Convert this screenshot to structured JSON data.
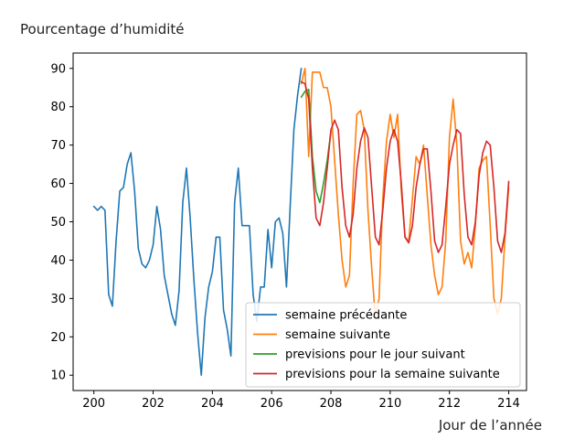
{
  "chart_data": {
    "type": "line",
    "title": "",
    "ylabel": "Pourcentage d’humidité",
    "xlabel": "Jour de l’année",
    "xlim": [
      199.3,
      214.6
    ],
    "ylim": [
      6,
      94
    ],
    "xticks": [
      200,
      202,
      204,
      206,
      208,
      210,
      212,
      214
    ],
    "yticks": [
      10,
      20,
      30,
      40,
      50,
      60,
      70,
      80,
      90
    ],
    "grid": false,
    "legend_position": "bottom-right",
    "series": [
      {
        "name": "semaine précédante",
        "color": "#1f77b4",
        "x": [
          200.0,
          200.125,
          200.25,
          200.375,
          200.5,
          200.625,
          200.75,
          200.875,
          201.0,
          201.125,
          201.25,
          201.375,
          201.5,
          201.625,
          201.75,
          201.875,
          202.0,
          202.125,
          202.25,
          202.375,
          202.5,
          202.625,
          202.75,
          202.875,
          203.0,
          203.125,
          203.25,
          203.375,
          203.5,
          203.625,
          203.75,
          203.875,
          204.0,
          204.125,
          204.25,
          204.375,
          204.5,
          204.625,
          204.75,
          204.875,
          205.0,
          205.125,
          205.25,
          205.375,
          205.5,
          205.625,
          205.75,
          205.875,
          206.0,
          206.125,
          206.25,
          206.375,
          206.5,
          206.625,
          206.75,
          206.875,
          207.0
        ],
        "y": [
          54,
          53,
          54,
          53,
          31,
          28,
          45,
          58,
          59,
          65,
          68,
          58,
          43,
          39,
          38,
          40,
          44,
          54,
          48,
          36,
          31,
          26,
          23,
          32,
          55,
          64,
          51,
          35,
          21,
          10,
          25,
          33,
          37,
          46,
          46,
          27,
          22,
          15,
          55,
          64,
          49,
          49,
          49,
          31,
          24,
          33,
          33,
          48,
          38,
          50,
          51,
          47,
          33,
          54,
          74,
          83,
          90
        ]
      },
      {
        "name": "semaine suivante",
        "color": "#ff7f0e",
        "x": [
          207.0,
          207.125,
          207.25,
          207.375,
          207.5,
          207.625,
          207.75,
          207.875,
          208.0,
          208.125,
          208.25,
          208.375,
          208.5,
          208.625,
          208.75,
          208.875,
          209.0,
          209.125,
          209.25,
          209.375,
          209.5,
          209.625,
          209.75,
          209.875,
          210.0,
          210.125,
          210.25,
          210.375,
          210.5,
          210.625,
          210.75,
          210.875,
          211.0,
          211.125,
          211.25,
          211.375,
          211.5,
          211.625,
          211.75,
          211.875,
          212.0,
          212.125,
          212.25,
          212.375,
          212.5,
          212.625,
          212.75,
          212.875,
          213.0,
          213.125,
          213.25,
          213.375,
          213.5,
          213.625,
          213.75,
          213.875,
          214.0
        ],
        "y": [
          86,
          90,
          67,
          89,
          89,
          89,
          85,
          85,
          80,
          66,
          52,
          40,
          33,
          36,
          60,
          78,
          79,
          74,
          53,
          38,
          25,
          30,
          56,
          71,
          78,
          72,
          78,
          58,
          46,
          45,
          56,
          67,
          65,
          70,
          57,
          44,
          36,
          31,
          33,
          45,
          72,
          82,
          70,
          45,
          39,
          42,
          38,
          49,
          64,
          66,
          67,
          49,
          30,
          26,
          30,
          46,
          59
        ]
      },
      {
        "name": "previsions pour le jour suivant",
        "color": "#2ca02c",
        "x": [
          207.0,
          207.125,
          207.25,
          207.375,
          207.5,
          207.625,
          207.75,
          207.875,
          208.0
        ],
        "y": [
          82.5,
          84,
          84.5,
          67,
          58,
          55,
          60,
          66,
          73.5
        ]
      },
      {
        "name": "previsions pour la semaine suivante",
        "color": "#d62728",
        "x": [
          207.0,
          207.125,
          207.25,
          207.375,
          207.5,
          207.625,
          207.75,
          207.875,
          208.0,
          208.125,
          208.25,
          208.375,
          208.5,
          208.625,
          208.75,
          208.875,
          209.0,
          209.125,
          209.25,
          209.375,
          209.5,
          209.625,
          209.75,
          209.875,
          210.0,
          210.125,
          210.25,
          210.375,
          210.5,
          210.625,
          210.75,
          210.875,
          211.0,
          211.125,
          211.25,
          211.375,
          211.5,
          211.625,
          211.75,
          211.875,
          212.0,
          212.125,
          212.25,
          212.375,
          212.5,
          212.625,
          212.75,
          212.875,
          213.0,
          213.125,
          213.25,
          213.375,
          213.5,
          213.625,
          213.75,
          213.875,
          214.0
        ],
        "y": [
          86.5,
          86,
          82,
          64,
          51,
          49,
          55,
          64,
          74,
          76.5,
          74,
          59,
          49,
          46,
          52,
          64,
          71,
          74.5,
          72,
          59,
          46,
          44,
          53,
          64,
          71,
          74,
          71,
          60,
          46,
          44.5,
          49,
          59,
          65,
          69,
          69,
          58,
          45,
          42,
          44,
          54,
          65,
          70,
          74,
          73,
          57,
          46,
          44,
          50,
          62,
          68,
          71,
          70,
          59,
          45,
          42,
          47,
          60.5
        ]
      }
    ]
  }
}
